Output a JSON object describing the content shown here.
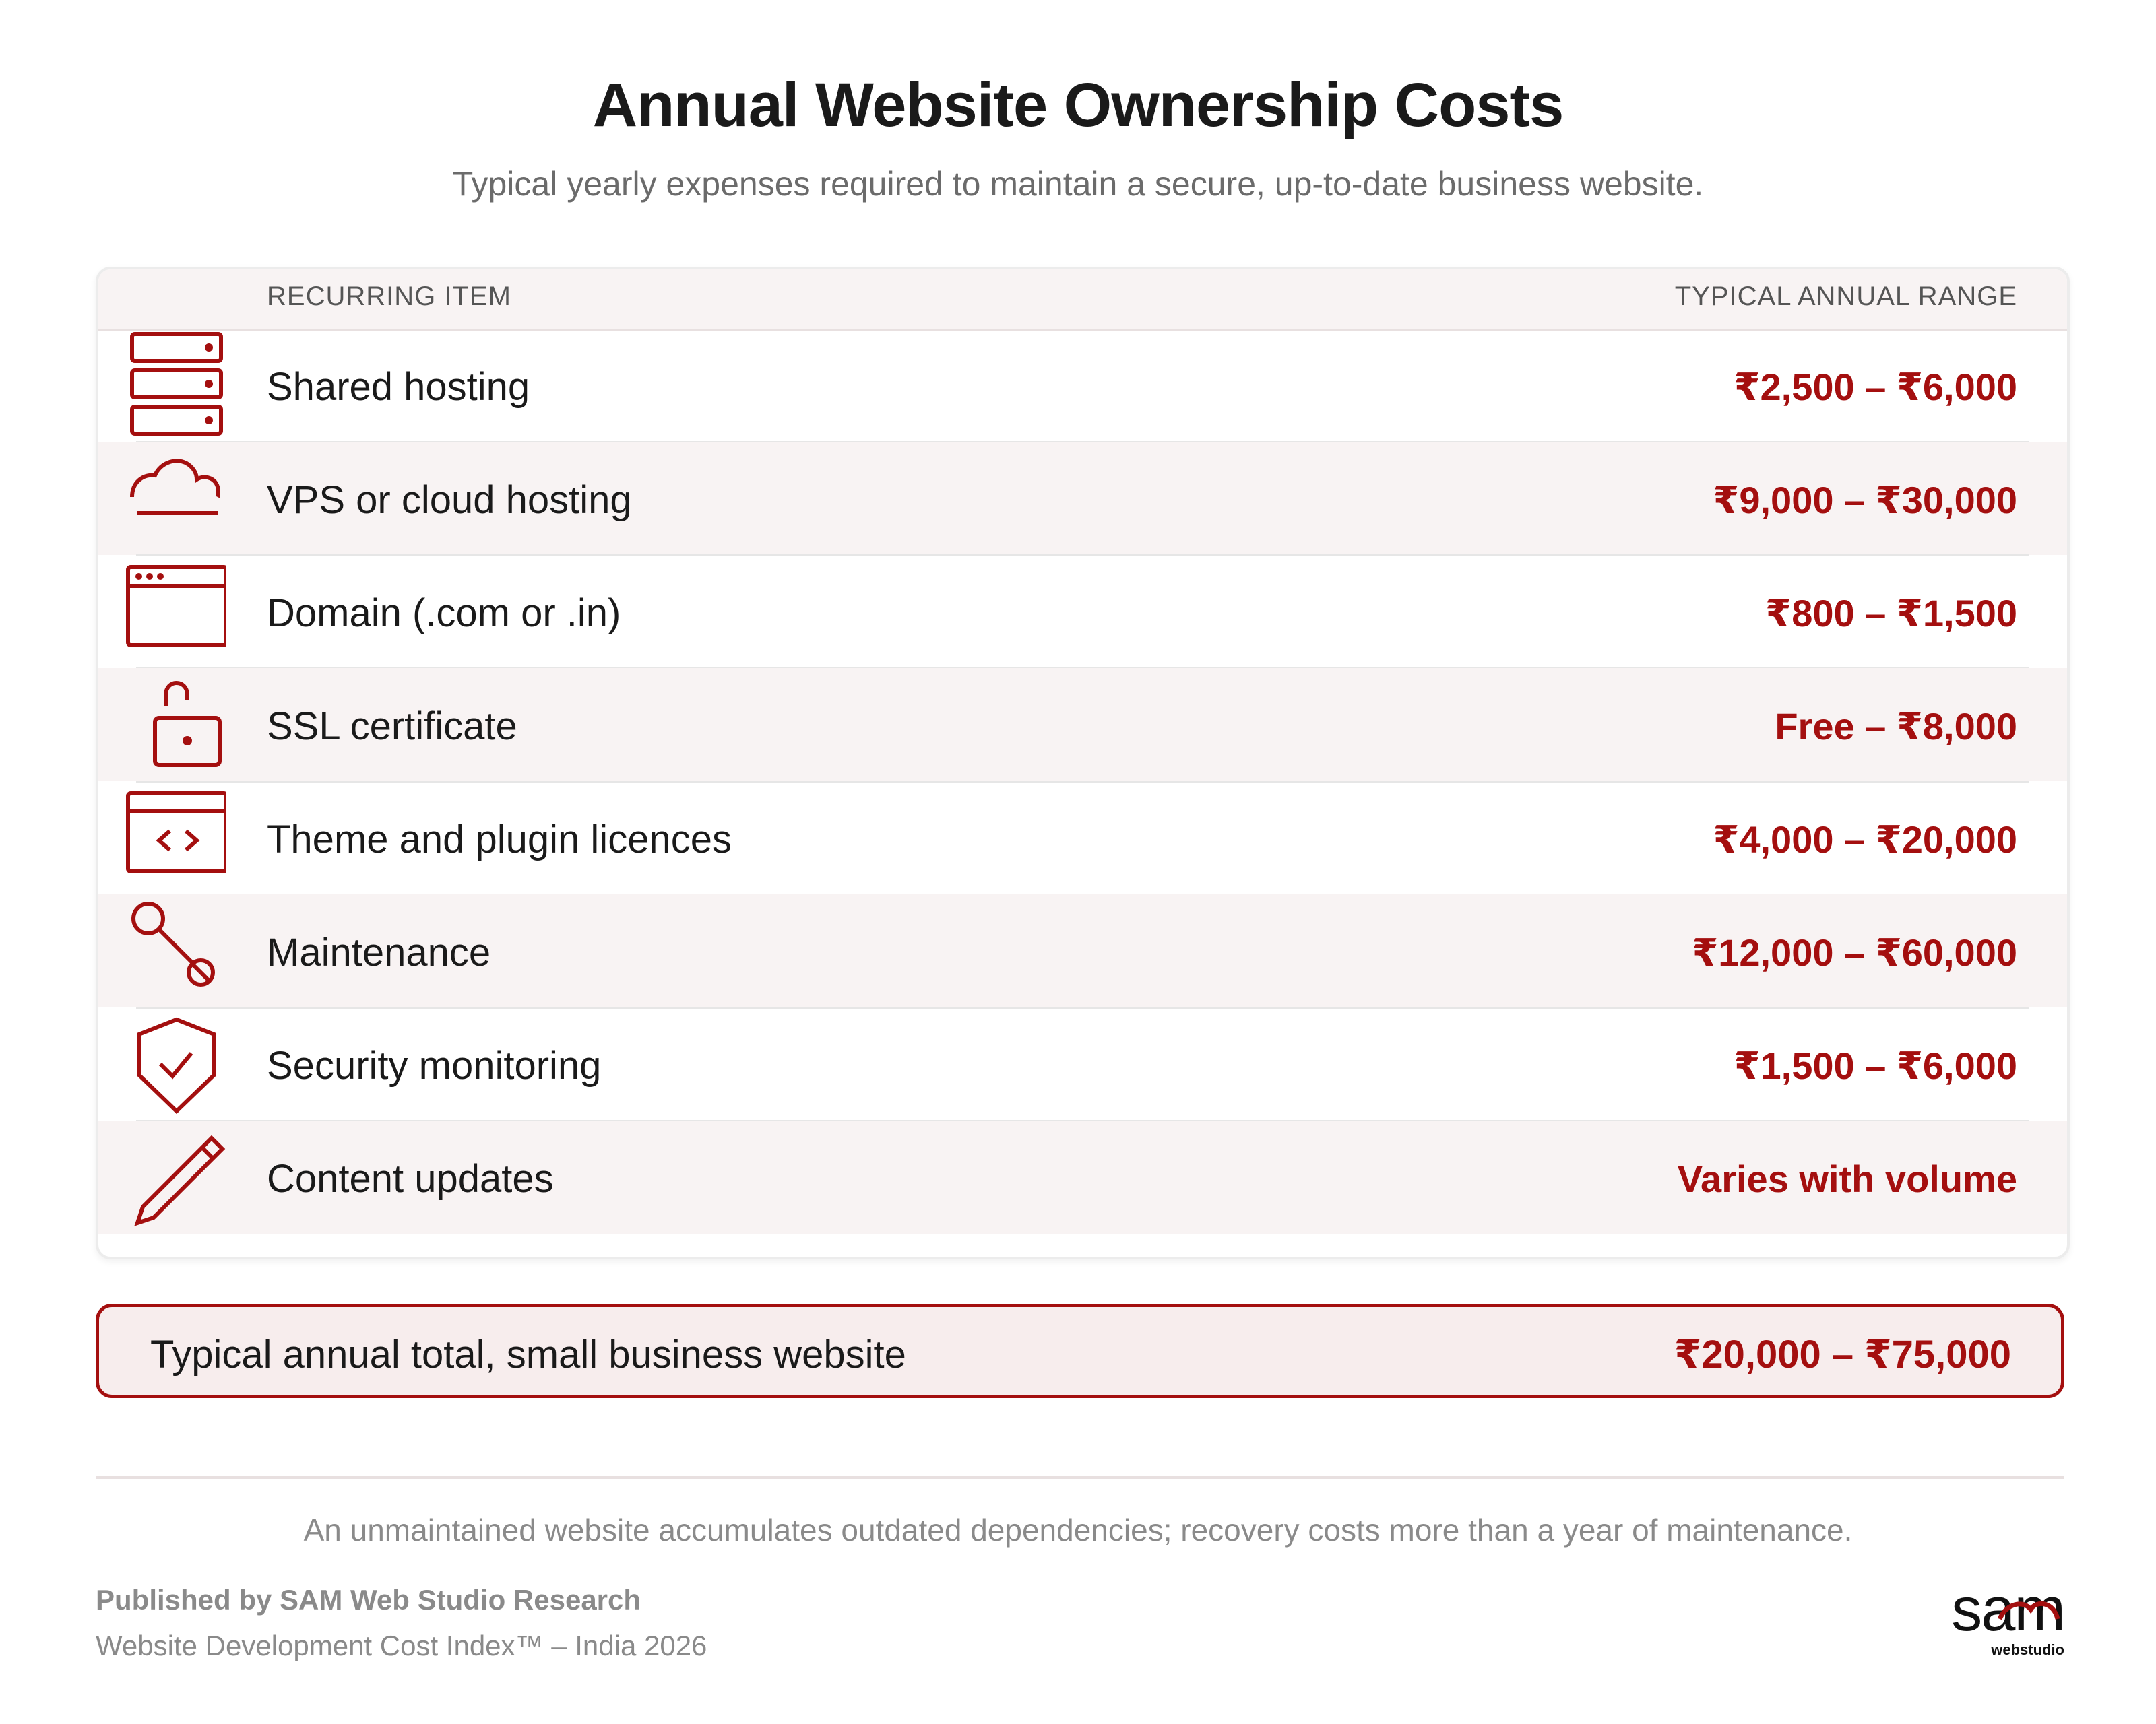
{
  "header": {
    "title": "Annual Website Ownership Costs",
    "subtitle": "Typical yearly expenses required to maintain a secure, up-to-date business website."
  },
  "table": {
    "col_item": "RECURRING ITEM",
    "col_range": "TYPICAL ANNUAL RANGE",
    "rows": [
      {
        "icon": "server-icon",
        "label": "Shared hosting",
        "value": "₹2,500 – ₹6,000"
      },
      {
        "icon": "cloud-icon",
        "label": "VPS or cloud hosting",
        "value": "₹9,000 – ₹30,000"
      },
      {
        "icon": "browser-window-icon",
        "label": "Domain (.com or .in)",
        "value": "₹800 – ₹1,500"
      },
      {
        "icon": "lock-icon",
        "label": "SSL certificate",
        "value": "Free – ₹8,000"
      },
      {
        "icon": "code-window-icon",
        "label": "Theme and plugin licences",
        "value": "₹4,000 – ₹20,000"
      },
      {
        "icon": "wrench-icon",
        "label": "Maintenance",
        "value": "₹12,000 – ₹60,000"
      },
      {
        "icon": "shield-check-icon",
        "label": "Security monitoring",
        "value": "₹1,500 – ₹6,000"
      },
      {
        "icon": "pencil-icon",
        "label": "Content updates",
        "value": "Varies with volume"
      }
    ]
  },
  "total": {
    "label": "Typical annual total, small business website",
    "value": "₹20,000 – ₹75,000"
  },
  "footer": {
    "note": "An unmaintained website accumulates outdated dependencies; recovery costs more than a year of maintenance.",
    "publisher": "Published by SAM Web Studio Research",
    "index": "Website Development Cost Index™ – India 2026",
    "logo_main": "sam",
    "logo_sub": "webstudio"
  },
  "colors": {
    "accent": "#a40f0f",
    "row_alt": "#f8f3f3",
    "muted": "#8a8a8a"
  }
}
